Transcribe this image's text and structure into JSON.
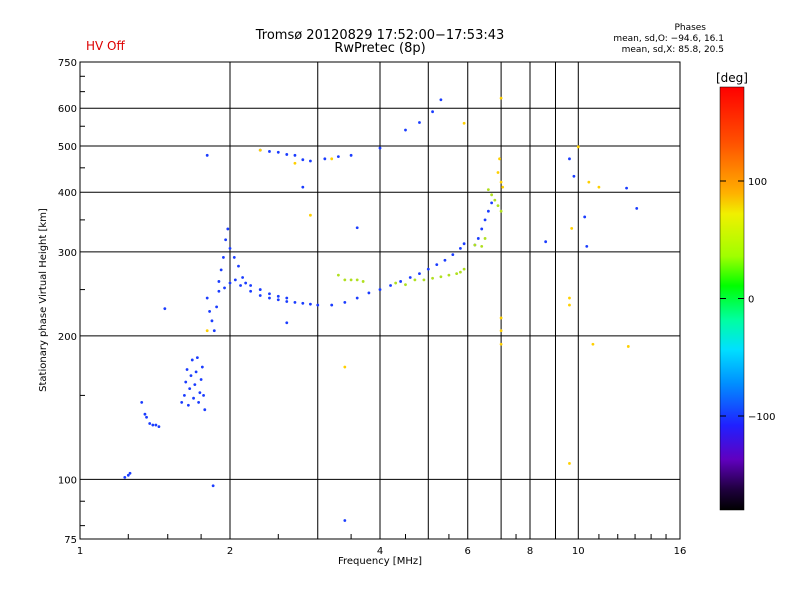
{
  "header": {
    "title": "Tromsø 20120829 17:52:00−17:53:43",
    "subtitle": "RwPretec (8p)",
    "status": "HV Off",
    "phases_title": "Phases",
    "phases_o": "mean, sd,O: −94.6, 16.1",
    "phases_x": "mean, sd,X: 85.8, 20.5"
  },
  "colors": {
    "status": "#dd0000"
  },
  "chart_data": {
    "type": "scatter",
    "title": "Tromsø 20120829 17:52:00−17:53:43",
    "subtitle": "RwPretec (8p)",
    "xlabel": "Frequency [MHz]",
    "ylabel": "Stationary phase Virtual Height [km]",
    "xscale": "log2",
    "yscale": "log",
    "xlim": [
      1,
      16
    ],
    "ylim": [
      75,
      750
    ],
    "xticks": [
      1,
      2,
      4,
      6,
      8,
      10,
      16
    ],
    "xticklabels": [
      "1",
      "2",
      "4",
      "6",
      "8",
      "10",
      "16"
    ],
    "xminor": [
      3,
      5,
      7,
      9
    ],
    "yticks": [
      75,
      100,
      200,
      300,
      400,
      500,
      600,
      750
    ],
    "yticklabels": [
      "75",
      "100",
      "200",
      "300",
      "400",
      "500",
      "600",
      "750"
    ],
    "grid": true,
    "colorbar": {
      "label": "[deg]",
      "ticks": [
        100,
        0,
        -100
      ],
      "ticklabels": [
        "100",
        "0",
        "−100"
      ],
      "range": [
        -180,
        180
      ]
    },
    "series": [
      {
        "name": "O-mode trace (blue, ~−100 deg)",
        "color": "#1a3cff",
        "points": [
          [
            1.23,
            101
          ],
          [
            1.25,
            102
          ],
          [
            1.26,
            103
          ],
          [
            1.33,
            145
          ],
          [
            1.35,
            137
          ],
          [
            1.36,
            135
          ],
          [
            1.38,
            131
          ],
          [
            1.4,
            130
          ],
          [
            1.42,
            130
          ],
          [
            1.44,
            129
          ],
          [
            1.48,
            228
          ],
          [
            1.6,
            145
          ],
          [
            1.62,
            150
          ],
          [
            1.63,
            160
          ],
          [
            1.64,
            170
          ],
          [
            1.65,
            143
          ],
          [
            1.66,
            155
          ],
          [
            1.67,
            165
          ],
          [
            1.68,
            178
          ],
          [
            1.69,
            148
          ],
          [
            1.7,
            158
          ],
          [
            1.71,
            168
          ],
          [
            1.72,
            180
          ],
          [
            1.73,
            145
          ],
          [
            1.74,
            152
          ],
          [
            1.75,
            162
          ],
          [
            1.76,
            172
          ],
          [
            1.77,
            150
          ],
          [
            1.78,
            140
          ],
          [
            1.8,
            240
          ],
          [
            1.82,
            225
          ],
          [
            1.84,
            215
          ],
          [
            1.86,
            205
          ],
          [
            1.88,
            230
          ],
          [
            1.9,
            260
          ],
          [
            1.92,
            275
          ],
          [
            1.94,
            292
          ],
          [
            1.96,
            318
          ],
          [
            1.98,
            335
          ],
          [
            2.0,
            305
          ],
          [
            2.04,
            292
          ],
          [
            2.08,
            280
          ],
          [
            2.12,
            265
          ],
          [
            2.15,
            258
          ],
          [
            2.2,
            255
          ],
          [
            2.3,
            250
          ],
          [
            2.4,
            245
          ],
          [
            2.5,
            242
          ],
          [
            2.6,
            240
          ],
          [
            1.9,
            248
          ],
          [
            1.95,
            252
          ],
          [
            2.0,
            258
          ],
          [
            2.05,
            262
          ],
          [
            2.1,
            255
          ],
          [
            2.2,
            248
          ],
          [
            2.3,
            243
          ],
          [
            2.4,
            240
          ],
          [
            2.5,
            238
          ],
          [
            2.6,
            236
          ],
          [
            2.7,
            235
          ],
          [
            2.8,
            234
          ],
          [
            2.9,
            233
          ],
          [
            3.0,
            232
          ],
          [
            3.2,
            232
          ],
          [
            3.4,
            235
          ],
          [
            3.6,
            240
          ],
          [
            3.8,
            246
          ],
          [
            4.0,
            250
          ],
          [
            4.2,
            255
          ],
          [
            4.4,
            260
          ],
          [
            4.6,
            265
          ],
          [
            4.8,
            270
          ],
          [
            5.0,
            276
          ],
          [
            5.2,
            282
          ],
          [
            5.4,
            288
          ],
          [
            5.6,
            296
          ],
          [
            5.8,
            305
          ],
          [
            5.9,
            312
          ],
          [
            2.3,
            490
          ],
          [
            2.4,
            487
          ],
          [
            2.5,
            485
          ],
          [
            2.6,
            480
          ],
          [
            2.7,
            478
          ],
          [
            2.8,
            468
          ],
          [
            2.9,
            465
          ],
          [
            3.1,
            470
          ],
          [
            3.3,
            475
          ],
          [
            3.5,
            478
          ],
          [
            2.6,
            213
          ],
          [
            2.8,
            410
          ],
          [
            3.6,
            337
          ],
          [
            3.4,
            82
          ],
          [
            4.0,
            495
          ],
          [
            4.5,
            540
          ],
          [
            4.8,
            560
          ],
          [
            5.1,
            590
          ],
          [
            5.3,
            625
          ],
          [
            6.2,
            310
          ],
          [
            6.3,
            320
          ],
          [
            6.4,
            335
          ],
          [
            6.5,
            350
          ],
          [
            6.6,
            365
          ],
          [
            6.7,
            380
          ],
          [
            8.6,
            315
          ],
          [
            9.6,
            470
          ],
          [
            9.8,
            432
          ],
          [
            10.3,
            355
          ],
          [
            10.4,
            308
          ],
          [
            12.5,
            408
          ],
          [
            13.1,
            370
          ],
          [
            1.8,
            478
          ],
          [
            1.85,
            97
          ]
        ]
      },
      {
        "name": "Intermediate phase (cyan / yellow-green)",
        "color": "#b0e020",
        "points": [
          [
            3.3,
            268
          ],
          [
            3.4,
            262
          ],
          [
            3.5,
            262
          ],
          [
            3.6,
            262
          ],
          [
            3.7,
            260
          ],
          [
            4.3,
            258
          ],
          [
            4.5,
            256
          ],
          [
            4.7,
            262
          ],
          [
            4.9,
            262
          ],
          [
            5.1,
            264
          ],
          [
            5.3,
            266
          ],
          [
            5.5,
            268
          ],
          [
            5.7,
            270
          ],
          [
            5.8,
            272
          ],
          [
            5.9,
            276
          ],
          [
            6.6,
            405
          ],
          [
            6.7,
            395
          ],
          [
            6.8,
            385
          ],
          [
            6.9,
            375
          ],
          [
            7.0,
            365
          ],
          [
            6.4,
            308
          ],
          [
            6.5,
            320
          ],
          [
            6.2,
            310
          ]
        ]
      },
      {
        "name": "X-mode trace (yellow/orange/red, ~+100 deg)",
        "color": "#ffd000",
        "points": [
          [
            2.3,
            490
          ],
          [
            2.7,
            460
          ],
          [
            2.9,
            358
          ],
          [
            3.2,
            470
          ],
          [
            5.9,
            558
          ],
          [
            7.0,
            630
          ],
          [
            6.9,
            440
          ],
          [
            6.95,
            470
          ],
          [
            7.0,
            420
          ],
          [
            7.05,
            410
          ],
          [
            7.0,
            218
          ],
          [
            7.0,
            205
          ],
          [
            7.0,
            192
          ],
          [
            9.6,
            240
          ],
          [
            9.6,
            232
          ],
          [
            9.6,
            108
          ],
          [
            10.0,
            498
          ],
          [
            10.5,
            420
          ],
          [
            11.0,
            410
          ],
          [
            12.6,
            190
          ],
          [
            10.7,
            192
          ],
          [
            9.7,
            336
          ],
          [
            3.4,
            172
          ],
          [
            1.8,
            205
          ]
        ]
      }
    ]
  },
  "colorbar_label": "[deg]",
  "axes": {
    "xlabel": "Frequency [MHz]",
    "ylabel": "Stationary phase Virtual Height [km]"
  }
}
